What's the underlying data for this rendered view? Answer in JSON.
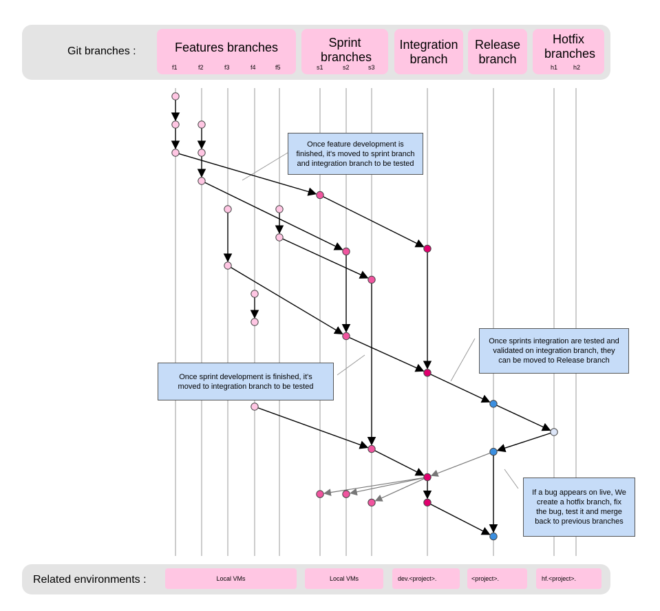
{
  "header": {
    "label": "Git branches :",
    "groups": [
      {
        "key": "features",
        "title": "Features branches",
        "branches": [
          "f1",
          "f2",
          "f3",
          "f4",
          "f5"
        ]
      },
      {
        "key": "sprint",
        "title": "Sprint branches",
        "branches": [
          "s1",
          "s2",
          "s3"
        ]
      },
      {
        "key": "integration",
        "title": "Integration branch",
        "branches": []
      },
      {
        "key": "release",
        "title": "Release branch",
        "branches": []
      },
      {
        "key": "hotfix",
        "title": "Hotfix branches",
        "branches": [
          "h1",
          "h2"
        ]
      }
    ]
  },
  "footer": {
    "label": "Related environments :",
    "envs": [
      "Local VMs",
      "Local VMs",
      "dev.<project>.",
      "<project>.",
      "hf.<project>."
    ]
  },
  "notes": {
    "feature": "Once feature development is finished, it's moved to sprint branch and integration branch to be tested",
    "sprint": "Once sprint development is finished, it's moved to integration branch to be tested",
    "release": "Once sprints integration are tested and validated on integration branch, they can be moved to Release branch",
    "hotfix": "If a bug appears on live, We create a hotfix branch, fix the bug, test it and merge back to previous branches"
  },
  "colors": {
    "feature_node": "#ffc6e3",
    "sprint_node": "#f0559f",
    "integration_node": "#e0006e",
    "release_node": "#3b8fe0",
    "hotfix_node": "#dde6f8",
    "note_bg": "#c6dcf8",
    "header_bg": "#ffc6e3"
  },
  "diagram": {
    "lanes": [
      "f1",
      "f2",
      "f3",
      "f4",
      "f5",
      "s1",
      "s2",
      "s3",
      "int",
      "rel",
      "h1",
      "h2"
    ],
    "nodes": [
      {
        "id": "a1",
        "lane": "f1",
        "row": 0,
        "kind": "feature"
      },
      {
        "id": "a2",
        "lane": "f1",
        "row": 1,
        "kind": "feature"
      },
      {
        "id": "a3",
        "lane": "f1",
        "row": 2,
        "kind": "feature"
      },
      {
        "id": "b1",
        "lane": "f2",
        "row": 1,
        "kind": "feature"
      },
      {
        "id": "b2",
        "lane": "f2",
        "row": 2,
        "kind": "feature"
      },
      {
        "id": "b3",
        "lane": "f2",
        "row": 3,
        "kind": "feature"
      },
      {
        "id": "c1",
        "lane": "f3",
        "row": 4,
        "kind": "feature"
      },
      {
        "id": "c2",
        "lane": "f3",
        "row": 6,
        "kind": "feature"
      },
      {
        "id": "e1",
        "lane": "f5",
        "row": 4,
        "kind": "feature"
      },
      {
        "id": "e2",
        "lane": "f5",
        "row": 5,
        "kind": "feature"
      },
      {
        "id": "d1",
        "lane": "f4",
        "row": 7,
        "kind": "feature"
      },
      {
        "id": "d2",
        "lane": "f4",
        "row": 8,
        "kind": "feature"
      },
      {
        "id": "d3",
        "lane": "f4",
        "row": 11,
        "kind": "feature"
      },
      {
        "id": "s1a",
        "lane": "s1",
        "row": 3.5,
        "kind": "sprint"
      },
      {
        "id": "s2a",
        "lane": "s2",
        "row": 5.5,
        "kind": "sprint"
      },
      {
        "id": "s3a",
        "lane": "s3",
        "row": 6.5,
        "kind": "sprint"
      },
      {
        "id": "s2b",
        "lane": "s2",
        "row": 8.5,
        "kind": "sprint"
      },
      {
        "id": "s3b",
        "lane": "s3",
        "row": 12.5,
        "kind": "sprint"
      },
      {
        "id": "i1",
        "lane": "int",
        "row": 5.4,
        "kind": "integration"
      },
      {
        "id": "i2",
        "lane": "int",
        "row": 9.8,
        "kind": "integration"
      },
      {
        "id": "i3",
        "lane": "int",
        "row": 13.5,
        "kind": "integration"
      },
      {
        "id": "i4",
        "lane": "int",
        "row": 14.4,
        "kind": "integration"
      },
      {
        "id": "r1",
        "lane": "rel",
        "row": 10.9,
        "kind": "release"
      },
      {
        "id": "r2",
        "lane": "rel",
        "row": 12.6,
        "kind": "release"
      },
      {
        "id": "r3",
        "lane": "rel",
        "row": 15.6,
        "kind": "release"
      },
      {
        "id": "h1a",
        "lane": "h1",
        "row": 11.9,
        "kind": "hotfix"
      },
      {
        "id": "bs1",
        "lane": "s1",
        "row": 14.1,
        "kind": "sprint"
      },
      {
        "id": "bs2",
        "lane": "s2",
        "row": 14.1,
        "kind": "sprint"
      },
      {
        "id": "bs3",
        "lane": "s3",
        "row": 14.4,
        "kind": "sprint"
      }
    ],
    "edges": [
      {
        "from": "a1",
        "to": "a2",
        "kind": "main"
      },
      {
        "from": "a2",
        "to": "a3",
        "kind": "main"
      },
      {
        "from": "b1",
        "to": "b2",
        "kind": "main"
      },
      {
        "from": "b2",
        "to": "b3",
        "kind": "main"
      },
      {
        "from": "c1",
        "to": "c2",
        "kind": "main"
      },
      {
        "from": "e1",
        "to": "e2",
        "kind": "main"
      },
      {
        "from": "d1",
        "to": "d2",
        "kind": "main"
      },
      {
        "from": "a3",
        "to": "s1a",
        "kind": "main"
      },
      {
        "from": "s1a",
        "to": "i1",
        "kind": "main"
      },
      {
        "from": "b3",
        "to": "s2a",
        "kind": "main"
      },
      {
        "from": "e2",
        "to": "s3a",
        "kind": "main"
      },
      {
        "from": "s2a",
        "to": "s2b",
        "kind": "main"
      },
      {
        "from": "c2",
        "to": "s2b",
        "kind": "main"
      },
      {
        "from": "s2b",
        "to": "i2",
        "kind": "main"
      },
      {
        "from": "i1",
        "to": "i2",
        "kind": "main"
      },
      {
        "from": "i2",
        "to": "r1",
        "kind": "main"
      },
      {
        "from": "r1",
        "to": "h1a",
        "kind": "main"
      },
      {
        "from": "h1a",
        "to": "r2",
        "kind": "main"
      },
      {
        "from": "d3",
        "to": "s3b",
        "kind": "main"
      },
      {
        "from": "s3a",
        "to": "s3b",
        "kind": "main"
      },
      {
        "from": "s3b",
        "to": "i3",
        "kind": "main"
      },
      {
        "from": "i3",
        "to": "i4",
        "kind": "main"
      },
      {
        "from": "i4",
        "to": "r3",
        "kind": "main"
      },
      {
        "from": "r2",
        "to": "r3",
        "kind": "main"
      },
      {
        "from": "r2",
        "to": "i3",
        "kind": "back"
      },
      {
        "from": "i3",
        "to": "bs1",
        "kind": "back"
      },
      {
        "from": "i3",
        "to": "bs2",
        "kind": "back"
      },
      {
        "from": "i3",
        "to": "bs3",
        "kind": "back"
      }
    ]
  }
}
